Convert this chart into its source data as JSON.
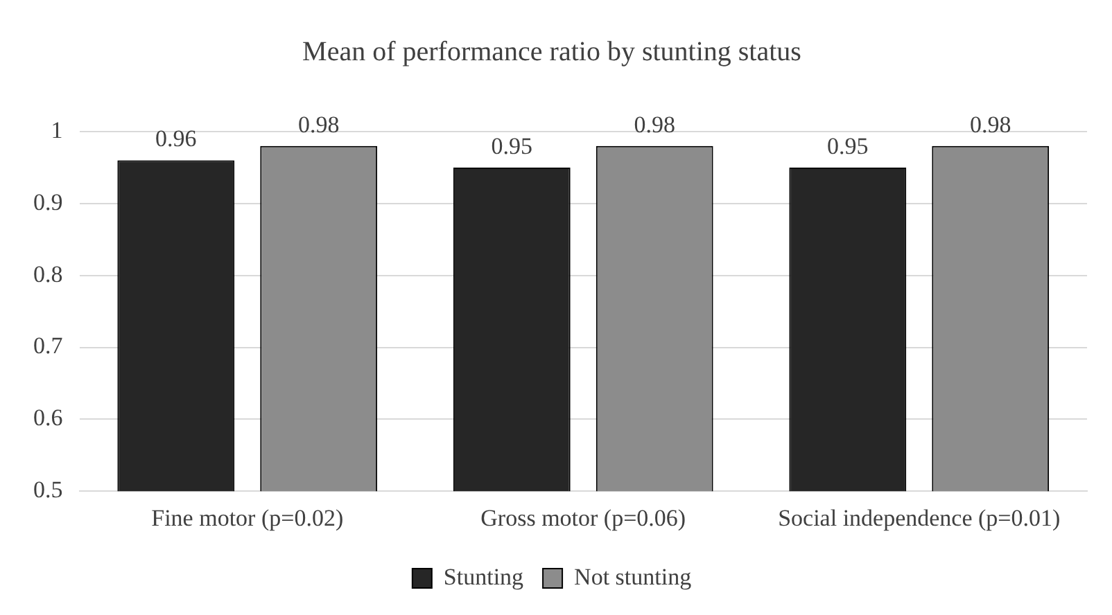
{
  "chart_data": {
    "type": "bar",
    "title": "Mean of performance ratio by stunting status",
    "categories": [
      "Fine motor (p=0.02)",
      "Gross motor (p=0.06)",
      "Social independence (p=0.01)"
    ],
    "series": [
      {
        "name": "Stunting",
        "color": "#262626",
        "values": [
          0.96,
          0.95,
          0.95
        ]
      },
      {
        "name": "Not stunting",
        "color": "#8c8c8c",
        "values": [
          0.98,
          0.98,
          0.98
        ]
      }
    ],
    "ylim": [
      0.5,
      1
    ],
    "yticks": [
      0.5,
      0.6,
      0.7,
      0.8,
      0.9,
      1
    ],
    "grid": "y",
    "legend": "bottom",
    "data_labels": true
  }
}
